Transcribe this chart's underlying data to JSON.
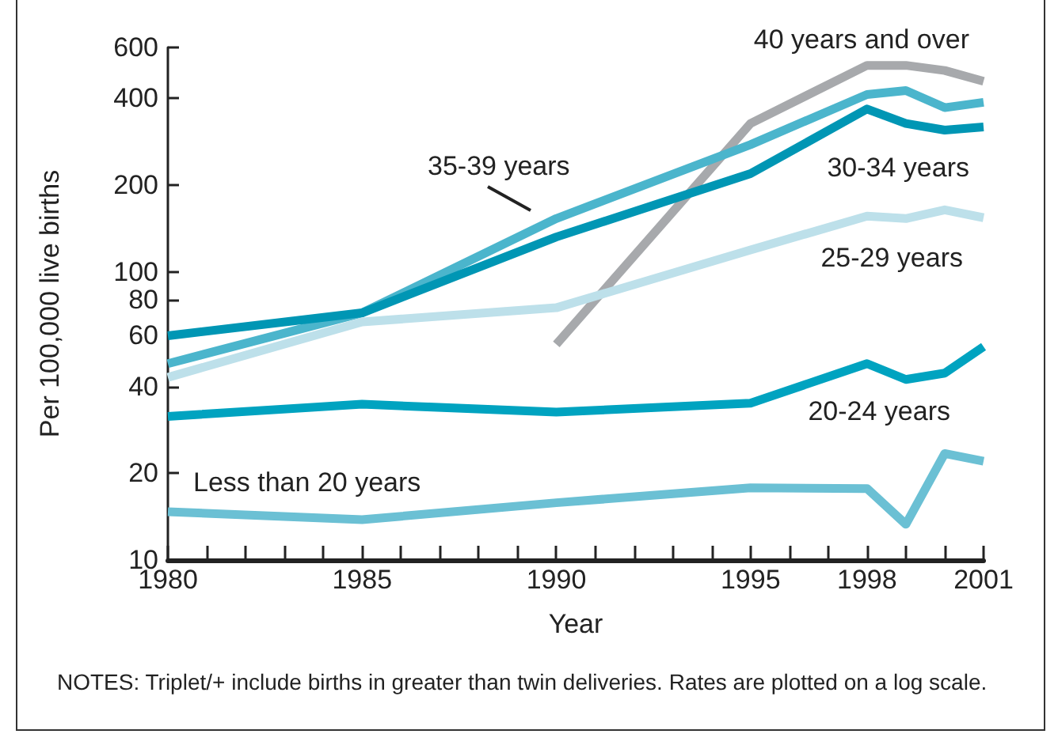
{
  "chart_data": {
    "type": "line",
    "xlabel": "Year",
    "ylabel": "Per 100,000 live births",
    "annotations": [
      "NOTES: Triplet/+ include births in greater than twin deliveries. Rates are plotted on a log scale."
    ],
    "x": [
      1980,
      1985,
      1990,
      1995,
      1998,
      1999,
      2000,
      2001
    ],
    "series": [
      {
        "name": "40 years and over",
        "color": "#a7a9ac",
        "values": [
          null,
          null,
          56,
          327,
          520,
          520,
          499,
          458
        ]
      },
      {
        "name": "35-39 years",
        "color": "#4bb5cc",
        "values": [
          48,
          72,
          153,
          276,
          412,
          425,
          371,
          387
        ]
      },
      {
        "name": "30-34 years",
        "color": "#0096b4",
        "values": [
          60,
          72,
          132,
          219,
          367,
          327,
          310,
          318
        ]
      },
      {
        "name": "25-29 years",
        "color": "#bde0ea",
        "values": [
          43,
          67,
          75,
          119,
          156,
          153,
          164,
          154
        ]
      },
      {
        "name": "20-24 years",
        "color": "#00a3c0",
        "values": [
          31.5,
          34.7,
          32.6,
          35,
          48,
          42.3,
          44.5,
          55
        ]
      },
      {
        "name": "Less than 20 years",
        "color": "#6bc0d4",
        "values": [
          14.7,
          13.8,
          15.8,
          17.8,
          17.7,
          13.3,
          23.4,
          22
        ]
      }
    ],
    "xlim": [
      1980,
      2001
    ],
    "xticks": [
      1980,
      {
        "value": 1981,
        "label": null
      },
      {
        "value": 1982,
        "label": null
      },
      {
        "value": 1983,
        "label": null
      },
      {
        "value": 1984,
        "label": null
      },
      1985,
      {
        "value": 1986,
        "label": null
      },
      {
        "value": 1987,
        "label": null
      },
      {
        "value": 1988,
        "label": null
      },
      {
        "value": 1989,
        "label": null
      },
      1990,
      {
        "value": 1991,
        "label": null
      },
      {
        "value": 1992,
        "label": null
      },
      {
        "value": 1993,
        "label": null
      },
      {
        "value": 1994,
        "label": null
      },
      1995,
      {
        "value": 1996,
        "label": null
      },
      {
        "value": 1997,
        "label": null
      },
      1998,
      {
        "value": 1999,
        "label": null
      },
      {
        "value": 2000,
        "label": null
      },
      2001
    ],
    "ylim": [
      10,
      600
    ],
    "yticks": [
      10,
      20,
      40,
      60,
      80,
      100,
      200,
      400,
      600
    ],
    "log": "y",
    "grid": false,
    "legend": false,
    "marker": "none",
    "line_style": "solid"
  }
}
